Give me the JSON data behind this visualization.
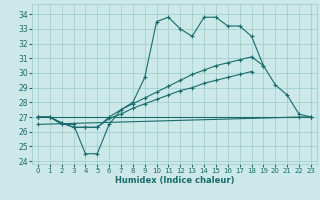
{
  "xlabel": "Humidex (Indice chaleur)",
  "background_color": "#cce8e8",
  "grid_color": "#99cccc",
  "line_color": "#1a6b6b",
  "xlim": [
    -0.5,
    23.5
  ],
  "ylim": [
    23.8,
    34.7
  ],
  "xticks": [
    0,
    1,
    2,
    3,
    4,
    5,
    6,
    7,
    8,
    9,
    10,
    11,
    12,
    13,
    14,
    15,
    16,
    17,
    18,
    19,
    20,
    21,
    22,
    23
  ],
  "yticks": [
    24,
    25,
    26,
    27,
    28,
    29,
    30,
    31,
    32,
    33,
    34
  ],
  "lines": [
    {
      "x": [
        0,
        1,
        2,
        3,
        4,
        5,
        6,
        7,
        8,
        9,
        10,
        11,
        12,
        13,
        14,
        15,
        16,
        17,
        18,
        19,
        20,
        21,
        22,
        23
      ],
      "y": [
        27.0,
        27.0,
        26.5,
        26.5,
        24.5,
        24.5,
        26.5,
        27.5,
        28.0,
        29.7,
        33.5,
        33.8,
        33.0,
        32.5,
        33.8,
        33.8,
        33.2,
        33.2,
        32.5,
        30.5,
        29.2,
        28.5,
        27.2,
        27.0
      ]
    },
    {
      "x": [
        0,
        1,
        2,
        3,
        4,
        5,
        6,
        7,
        8,
        9,
        10,
        11,
        12,
        13,
        14,
        15,
        16,
        17,
        18,
        19
      ],
      "y": [
        27.0,
        27.0,
        26.6,
        26.3,
        26.3,
        26.3,
        27.0,
        27.5,
        27.9,
        28.3,
        28.7,
        29.1,
        29.5,
        29.9,
        30.2,
        30.5,
        30.7,
        30.9,
        31.1,
        30.5
      ]
    },
    {
      "x": [
        0,
        1,
        2,
        3,
        4,
        5,
        6,
        7,
        8,
        9,
        10,
        11,
        12,
        13,
        14,
        15,
        16,
        17,
        18
      ],
      "y": [
        27.0,
        27.0,
        26.6,
        26.3,
        26.3,
        26.3,
        26.9,
        27.2,
        27.6,
        27.9,
        28.2,
        28.5,
        28.8,
        29.0,
        29.3,
        29.5,
        29.7,
        29.9,
        30.1
      ]
    },
    {
      "x": [
        0,
        23
      ],
      "y": [
        27.0,
        27.0
      ]
    },
    {
      "x": [
        0,
        22,
        23
      ],
      "y": [
        26.5,
        27.0,
        27.0
      ]
    }
  ]
}
